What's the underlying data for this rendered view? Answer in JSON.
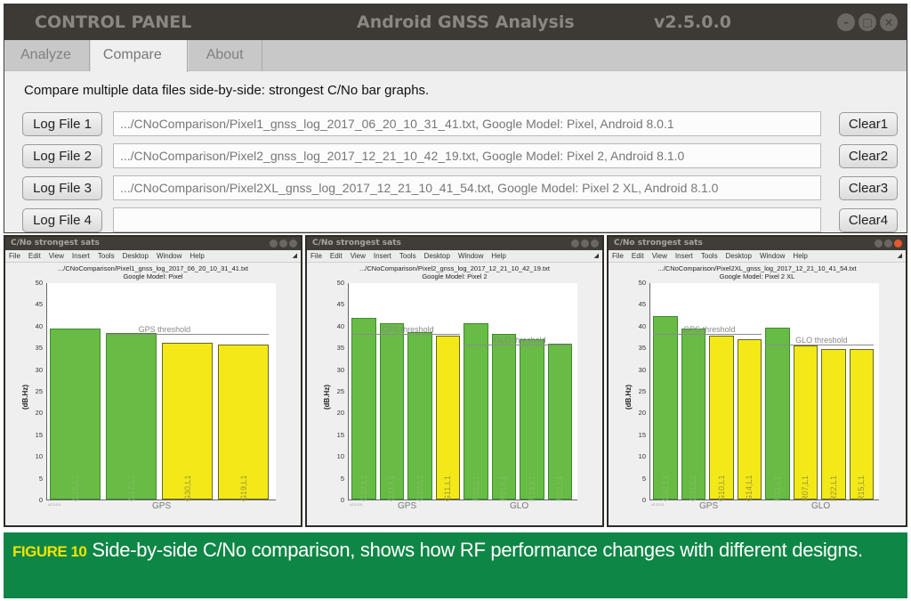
{
  "control_panel": {
    "title_left": "CONTROL PANEL",
    "title_center": "Android GNSS Analysis",
    "title_version": "v2.5.0.0",
    "window_buttons": [
      "minimize",
      "maximize",
      "close"
    ],
    "window_button_glyphs": [
      "–",
      "□",
      "×"
    ],
    "tabs": [
      {
        "label": "Analyze",
        "active": false
      },
      {
        "label": "Compare",
        "active": true
      },
      {
        "label": "About",
        "active": false
      }
    ],
    "description": "Compare multiple data files side-by-side: strongest C/No bar graphs.",
    "log_files": [
      {
        "button": "Log File 1",
        "value": ".../CNoComparison/Pixel1_gnss_log_2017_06_20_10_31_41.txt, Google Model: Pixel, Android 8.0.1",
        "clear": "Clear1"
      },
      {
        "button": "Log File 2",
        "value": ".../CNoComparison/Pixel2_gnss_log_2017_12_21_10_42_19.txt, Google Model: Pixel 2, Android 8.1.0",
        "clear": "Clear2"
      },
      {
        "button": "Log File 3",
        "value": ".../CNoComparison/Pixel2XL_gnss_log_2017_12_21_10_41_54.txt, Google Model: Pixel 2 XL, Android 8.1.0",
        "clear": "Clear3"
      },
      {
        "button": "Log File 4",
        "value": "",
        "clear": "Clear4"
      }
    ]
  },
  "plot_windows": [
    {
      "window_title": "C/No strongest sats",
      "menu": [
        "File",
        "Edit",
        "View",
        "Insert",
        "Tools",
        "Desktop",
        "Window",
        "Help"
      ],
      "plot_title_line1": ".../CNoComparison/Pixel1_gnss_log_2017_06_20_10_31_41.txt",
      "plot_title_line2": "Google Model: Pixel"
    },
    {
      "window_title": "C/No strongest sats",
      "menu": [
        "File",
        "Edit",
        "View",
        "Insert",
        "Tools",
        "Desktop",
        "Window",
        "Help"
      ],
      "plot_title_line1": ".../CNoComparison/Pixel2_gnss_log_2017_12_21_10_42_19.txt",
      "plot_title_line2": "Google Model: Pixel 2"
    },
    {
      "window_title": "C/No strongest sats",
      "menu": [
        "File",
        "Edit",
        "View",
        "Insert",
        "Tools",
        "Desktop",
        "Window",
        "Help"
      ],
      "plot_title_line1": ".../CNoComparison/Pixel2XL_gnss_log_2017_12_21_10_41_54.txt",
      "plot_title_line2": "Google Model: Pixel 2 XL"
    }
  ],
  "chart_data": [
    {
      "type": "bar",
      "title": ".../CNoComparison/Pixel1_gnss_log_2017_06_20_10_31_41.txt / Google Model: Pixel",
      "ylabel": "(dB.Hz)",
      "ylim": [
        0,
        50
      ],
      "yticks": [
        0,
        5,
        10,
        15,
        20,
        25,
        30,
        35,
        40,
        45,
        50
      ],
      "categories": [
        "G15,L1",
        "G17,L1",
        "G30,L1",
        "G19,L1"
      ],
      "values": [
        39.3,
        38.3,
        36.1,
        35.7
      ],
      "colors": [
        "green",
        "green",
        "yellow",
        "yellow"
      ],
      "groups": [
        {
          "label": "GPS",
          "from": 0,
          "to": 3
        }
      ],
      "thresholds": [
        {
          "label": "GPS threshold",
          "value": 38.0,
          "from": 1,
          "to": 3
        }
      ],
      "version_tag": "v2.5.0.0"
    },
    {
      "type": "bar",
      "title": ".../CNoComparison/Pixel2_gnss_log_2017_12_21_10_42_19.txt / Google Model: Pixel 2",
      "ylabel": "(dB.Hz)",
      "ylim": [
        0,
        50
      ],
      "yticks": [
        0,
        5,
        10,
        15,
        20,
        25,
        30,
        35,
        40,
        45,
        50
      ],
      "categories": [
        "G32,L1",
        "G31,L1",
        "G10,L1",
        "G11,L1",
        "R21,L1",
        "R01,L1",
        "R14,L1",
        "R22,L1"
      ],
      "values": [
        41.9,
        40.5,
        38.6,
        37.7,
        40.5,
        38.1,
        36.9,
        35.9
      ],
      "colors": [
        "green",
        "green",
        "green",
        "yellow",
        "green",
        "green",
        "green",
        "green"
      ],
      "groups": [
        {
          "label": "GPS",
          "from": 0,
          "to": 3
        },
        {
          "label": "GLO",
          "from": 4,
          "to": 7
        }
      ],
      "thresholds": [
        {
          "label": "GPS threshold",
          "value": 38.0,
          "from": 0,
          "to": 3
        },
        {
          "label": "GLO threshold",
          "value": 35.5,
          "from": 4,
          "to": 7
        }
      ],
      "version_tag": "v2.5.0.0"
    },
    {
      "type": "bar",
      "title": ".../CNoComparison/Pixel2XL_gnss_log_2017_12_21_10_41_54.txt / Google Model: Pixel 2 XL",
      "ylabel": "(dB.Hz)",
      "ylim": [
        0,
        50
      ],
      "yticks": [
        0,
        5,
        10,
        15,
        20,
        25,
        30,
        35,
        40,
        45,
        50
      ],
      "categories": [
        "G32,L1",
        "G31,L1",
        "G10,L1",
        "G14,L1",
        "R21,L1",
        "R07,L1",
        "R22,L1",
        "R15,L1"
      ],
      "values": [
        42.3,
        39.4,
        37.8,
        36.8,
        39.6,
        35.5,
        34.7,
        34.6
      ],
      "colors": [
        "green",
        "green",
        "yellow",
        "yellow",
        "green",
        "yellow",
        "yellow",
        "yellow"
      ],
      "groups": [
        {
          "label": "GPS",
          "from": 0,
          "to": 3
        },
        {
          "label": "GLO",
          "from": 4,
          "to": 7
        }
      ],
      "thresholds": [
        {
          "label": "GPS threshold",
          "value": 38.0,
          "from": 0,
          "to": 3
        },
        {
          "label": "GLO threshold",
          "value": 35.5,
          "from": 4,
          "to": 7
        }
      ],
      "version_tag": "v2.5.0.0"
    }
  ],
  "caption": {
    "figure_label": "FIGURE 10",
    "text": "Side-by-side C/No comparison, shows how RF performance changes with different designs."
  },
  "colors": {
    "bar_green": "#68bb45",
    "bar_yellow": "#f3e918",
    "caption_bg": "#0e8646",
    "caption_label": "#f3e300",
    "titlebar": "#3d3a35"
  }
}
